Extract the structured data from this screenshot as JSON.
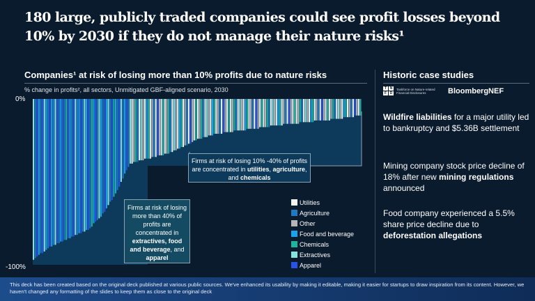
{
  "title": "180 large, publicly traded companies could see profit losses beyond 10% by 2030 if they do not manage their nature risks¹",
  "chart_data": {
    "type": "bar",
    "title": "Companies¹ at risk of losing more than 10% profits due to nature risks",
    "subtitle": "% change in profits², all sectors, Unmitigated GBF-aligned scenario, 2030",
    "ylim": [
      -100,
      0
    ],
    "y_ticks": [
      "0%",
      "-100%"
    ],
    "legend": [
      {
        "name": "Utilities",
        "color": "#f2f2f2"
      },
      {
        "name": "Agriculture",
        "color": "#1f78c2"
      },
      {
        "name": "Other",
        "color": "#b5b5b5"
      },
      {
        "name": "Food and beverage",
        "color": "#19a3ec"
      },
      {
        "name": "Chemicals",
        "color": "#1db39c"
      },
      {
        "name": "Extractives",
        "color": "#86e3e0"
      },
      {
        "name": "Apparel",
        "color": "#2952e6"
      }
    ],
    "legend_placement": "bottom-right",
    "values": [
      -97,
      -96,
      -95,
      -94,
      -93,
      -93,
      -92,
      -91,
      -90,
      -89,
      -89,
      -88,
      -88,
      -87,
      -87,
      -86,
      -86,
      -85,
      -85,
      -84,
      -84,
      -83,
      -83,
      -82,
      -82,
      -81,
      -81,
      -80,
      -80,
      -79,
      -79,
      -78,
      -77,
      -75,
      -74,
      -73,
      -72,
      -71,
      -69,
      -68,
      -66,
      -64,
      -62,
      -61,
      -59,
      -57,
      -55,
      -53,
      -50,
      -48,
      -45,
      -43,
      -41,
      -39,
      -39,
      -38,
      -38,
      -38,
      -37,
      -37,
      -37,
      -36,
      -36,
      -36,
      -36,
      -35,
      -35,
      -35,
      -34,
      -34,
      -34,
      -34,
      -33,
      -33,
      -33,
      -32,
      -32,
      -31,
      -31,
      -30,
      -30,
      -29,
      -29,
      -28,
      -28,
      -27,
      -27,
      -26,
      -25,
      -25,
      -24,
      -24,
      -24,
      -23,
      -23,
      -23,
      -22,
      -22,
      -22,
      -21,
      -21,
      -21,
      -21,
      -21,
      -20,
      -20,
      -20,
      -20,
      -20,
      -20,
      -19,
      -19,
      -19,
      -19,
      -19,
      -19,
      -19,
      -18,
      -18,
      -18,
      -18,
      -18,
      -18,
      -18,
      -17,
      -17,
      -17,
      -17,
      -17,
      -17,
      -16,
      -16,
      -16,
      -16,
      -16,
      -16,
      -16,
      -15,
      -15,
      -15,
      -15,
      -15,
      -15,
      -15,
      -15,
      -15,
      -14,
      -14,
      -14,
      -14,
      -14,
      -14,
      -14,
      -14,
      -13,
      -13,
      -13,
      -13,
      -13,
      -13,
      -13,
      -13,
      -13,
      -12,
      -12,
      -12,
      -12,
      -12,
      -12,
      -12,
      -11,
      -11,
      -11,
      -11,
      -11,
      -11,
      -10,
      -10,
      -10,
      -10
    ],
    "sector_index": [
      5,
      1,
      6,
      3,
      1,
      6,
      5,
      3,
      1,
      6,
      3,
      1,
      5,
      6,
      1,
      3,
      6,
      1,
      4,
      6,
      3,
      1,
      6,
      5,
      1,
      3,
      6,
      1,
      5,
      3,
      6,
      1,
      4,
      3,
      6,
      1,
      5,
      3,
      1,
      6,
      3,
      5,
      1,
      6,
      4,
      3,
      1,
      6,
      5,
      1,
      3,
      6,
      1,
      5,
      0,
      2,
      4,
      1,
      0,
      5,
      2,
      0,
      3,
      4,
      0,
      2,
      1,
      0,
      6,
      2,
      0,
      4,
      0,
      2,
      4,
      1,
      0,
      5,
      2,
      0,
      3,
      4,
      0,
      2,
      1,
      0,
      6,
      2,
      0,
      4,
      0,
      2,
      4,
      1,
      0,
      5,
      2,
      0,
      3,
      4,
      0,
      2,
      1,
      0,
      6,
      2,
      0,
      4,
      0,
      2,
      4,
      1,
      0,
      5,
      2,
      0,
      3,
      4,
      0,
      2,
      1,
      0,
      6,
      2,
      0,
      4,
      0,
      2,
      4,
      1,
      0,
      5,
      2,
      0,
      3,
      4,
      0,
      2,
      1,
      0,
      6,
      2,
      0,
      4,
      0,
      2,
      4,
      1,
      0,
      5,
      2,
      0,
      3,
      4,
      0,
      2,
      1,
      0,
      6,
      2,
      0,
      4,
      0,
      2,
      4,
      1,
      0,
      5,
      2,
      0,
      3,
      4,
      0,
      2,
      1,
      0,
      6,
      2,
      0,
      4
    ],
    "annotations": {
      "mid": {
        "pre": "Firms at risk of losing 10% -40% of profits are concentrated in ",
        "b1": "utilities",
        "s1": ", ",
        "b2": "agriculture",
        "s2": ", and ",
        "b3": "chemicals"
      },
      "high": {
        "pre": "Firms at risk of losing more than 40% of profits are concentrated in ",
        "b1": "extractives, food and beverage",
        "s1": ", and ",
        "b2": "apparel"
      }
    }
  },
  "right": {
    "title": "Historic case studies",
    "tnfd_letters": [
      "T",
      "N",
      "F",
      "D"
    ],
    "tnfd_text": "Taskforce on Nature-related Financial Disclosures",
    "bnef": "BloombergNEF",
    "cases": [
      {
        "b": "Wildfire liabilities",
        "t": " for a major utility led to bankruptcy and $5.36B settlement"
      },
      {
        "pre": "Mining company stock price decline of 18% after new ",
        "b": "mining regulations",
        "t": " announced"
      },
      {
        "pre": "Food company experienced a 5.5% share price decline due to ",
        "b": "deforestation allegations",
        "t": ""
      }
    ]
  },
  "footer": "This deck has been created based on the original deck published at various public sources. We've enhanced its usability by making it editable, making it easier for startups to draw inspiration from its content. However, we haven't changed any formatting of the slides to keep them as close to the original deck",
  "colors": {
    "background": "#0a1b2d",
    "plot_fill": "#0d3a5a",
    "annotation_fill": "#144b63"
  }
}
